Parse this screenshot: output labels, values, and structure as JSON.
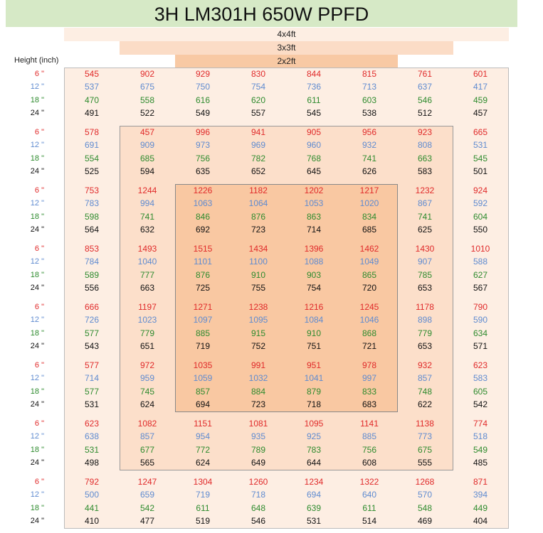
{
  "title": "3H LM301H 650W PPFD",
  "zones": [
    "4x4ft",
    "3x3ft",
    "2x2ft"
  ],
  "height_label": "Height (inch)",
  "blocks": [
    {
      "rows": [
        {
          "height": "6 \"",
          "values": [
            545,
            902,
            929,
            830,
            844,
            815,
            761,
            601
          ]
        },
        {
          "height": "12 \"",
          "values": [
            537,
            675,
            750,
            754,
            736,
            713,
            637,
            417
          ]
        },
        {
          "height": "18 \"",
          "values": [
            470,
            558,
            616,
            620,
            611,
            603,
            546,
            459
          ]
        },
        {
          "height": "24 \"",
          "values": [
            491,
            522,
            549,
            557,
            545,
            538,
            512,
            457
          ]
        }
      ]
    },
    {
      "rows": [
        {
          "height": "6 \"",
          "values": [
            578,
            457,
            996,
            941,
            905,
            956,
            923,
            665
          ]
        },
        {
          "height": "12 \"",
          "values": [
            691,
            909,
            973,
            969,
            960,
            932,
            808,
            531
          ]
        },
        {
          "height": "18 \"",
          "values": [
            554,
            685,
            756,
            782,
            768,
            741,
            663,
            545
          ]
        },
        {
          "height": "24 \"",
          "values": [
            525,
            594,
            635,
            652,
            645,
            626,
            583,
            501
          ]
        }
      ]
    },
    {
      "rows": [
        {
          "height": "6 \"",
          "values": [
            753,
            1244,
            1226,
            1182,
            1202,
            1217,
            1232,
            924
          ]
        },
        {
          "height": "12 \"",
          "values": [
            783,
            994,
            1063,
            1064,
            1053,
            1020,
            867,
            592
          ]
        },
        {
          "height": "18 \"",
          "values": [
            598,
            741,
            846,
            876,
            863,
            834,
            741,
            604
          ]
        },
        {
          "height": "24 \"",
          "values": [
            564,
            632,
            692,
            723,
            714,
            685,
            625,
            550
          ]
        }
      ]
    },
    {
      "rows": [
        {
          "height": "6 \"",
          "values": [
            853,
            1493,
            1515,
            1434,
            1396,
            1462,
            1430,
            1010
          ]
        },
        {
          "height": "12 \"",
          "values": [
            784,
            1040,
            1101,
            1100,
            1088,
            1049,
            907,
            588
          ]
        },
        {
          "height": "18 \"",
          "values": [
            589,
            777,
            876,
            910,
            903,
            865,
            785,
            627
          ]
        },
        {
          "height": "24 \"",
          "values": [
            556,
            663,
            725,
            755,
            754,
            720,
            653,
            567
          ]
        }
      ]
    },
    {
      "rows": [
        {
          "height": "6 \"",
          "values": [
            666,
            1197,
            1271,
            1238,
            1216,
            1245,
            1178,
            790
          ]
        },
        {
          "height": "12 \"",
          "values": [
            726,
            1023,
            1097,
            1095,
            1084,
            1046,
            898,
            590
          ]
        },
        {
          "height": "18 \"",
          "values": [
            577,
            779,
            885,
            915,
            910,
            868,
            779,
            634
          ]
        },
        {
          "height": "24 \"",
          "values": [
            543,
            651,
            719,
            752,
            751,
            721,
            653,
            571
          ]
        }
      ]
    },
    {
      "rows": [
        {
          "height": "6 \"",
          "values": [
            577,
            972,
            1035,
            991,
            951,
            978,
            932,
            623
          ]
        },
        {
          "height": "12 \"",
          "values": [
            714,
            959,
            1059,
            1032,
            1041,
            997,
            857,
            583
          ]
        },
        {
          "height": "18 \"",
          "values": [
            577,
            745,
            857,
            884,
            879,
            833,
            748,
            605
          ]
        },
        {
          "height": "24 \"",
          "values": [
            531,
            624,
            694,
            723,
            718,
            683,
            622,
            542
          ]
        }
      ]
    },
    {
      "rows": [
        {
          "height": "6 \"",
          "values": [
            623,
            1082,
            1151,
            1081,
            1095,
            1141,
            1138,
            774
          ]
        },
        {
          "height": "12 \"",
          "values": [
            638,
            857,
            954,
            935,
            925,
            885,
            773,
            518
          ]
        },
        {
          "height": "18 \"",
          "values": [
            531,
            677,
            772,
            789,
            783,
            756,
            675,
            549
          ]
        },
        {
          "height": "24 \"",
          "values": [
            498,
            565,
            624,
            649,
            644,
            608,
            555,
            485
          ]
        }
      ]
    },
    {
      "rows": [
        {
          "height": "6 \"",
          "values": [
            792,
            1247,
            1304,
            1260,
            1234,
            1322,
            1268,
            871
          ]
        },
        {
          "height": "12 \"",
          "values": [
            500,
            659,
            719,
            718,
            694,
            640,
            570,
            394
          ]
        },
        {
          "height": "18 \"",
          "values": [
            441,
            542,
            611,
            648,
            639,
            611,
            548,
            449
          ]
        },
        {
          "height": "24 \"",
          "values": [
            410,
            477,
            519,
            546,
            531,
            514,
            469,
            404
          ]
        }
      ]
    }
  ]
}
